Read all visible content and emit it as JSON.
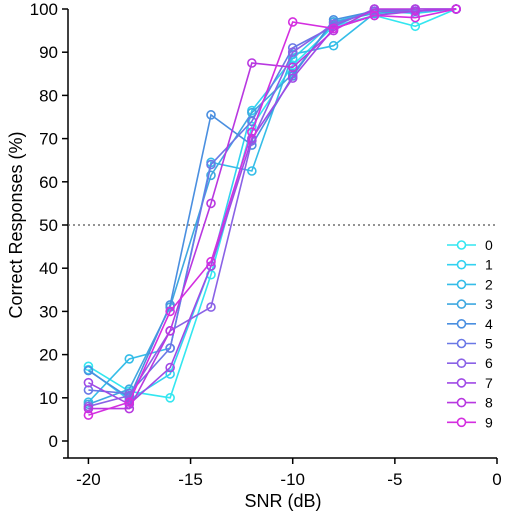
{
  "chart_data": {
    "type": "line",
    "xlabel": "SNR (dB)",
    "ylabel": "Correct Responses (%)",
    "xlim": [
      -21,
      0
    ],
    "ylim": [
      0,
      100
    ],
    "x": [
      -20,
      -18,
      -16,
      -14,
      -12,
      -10,
      -8,
      -6,
      -4,
      -2
    ],
    "x_ticks": [
      -20,
      -15,
      -10,
      -5,
      0
    ],
    "x_tick_labels": [
      "-20",
      "-15",
      "-10",
      "-5",
      "0"
    ],
    "y_ticks": [
      0,
      10,
      20,
      30,
      40,
      50,
      60,
      70,
      80,
      90,
      100
    ],
    "y_tick_labels": [
      "0",
      "10",
      "20",
      "30",
      "40",
      "50",
      "60",
      "70",
      "80",
      "90",
      "100"
    ],
    "reference_line": {
      "y": 50,
      "style": "dotted"
    },
    "grid": false,
    "legend_position": "right",
    "marker": "open-circle",
    "series": [
      {
        "name": "0",
        "color": "#33e6f0",
        "values": [
          17.3,
          11.5,
          10.0,
          38.5,
          72.8,
          87.0,
          96.0,
          98.5,
          96.0,
          100.0
        ]
      },
      {
        "name": "1",
        "color": "#33d2f0",
        "values": [
          16.5,
          9.5,
          15.5,
          40.5,
          76.5,
          88.5,
          97.0,
          99.5,
          99.0,
          100.0
        ]
      },
      {
        "name": "2",
        "color": "#35bde8",
        "values": [
          9.0,
          19.0,
          21.5,
          64.5,
          62.5,
          89.5,
          91.5,
          99.0,
          99.5,
          100.0
        ]
      },
      {
        "name": "3",
        "color": "#3fa8e0",
        "values": [
          8.5,
          12.0,
          31.0,
          61.5,
          76.0,
          85.0,
          97.0,
          99.0,
          99.5,
          100.0
        ]
      },
      {
        "name": "4",
        "color": "#4a8fe0",
        "values": [
          16.3,
          10.0,
          31.5,
          75.5,
          68.5,
          84.5,
          97.5,
          99.5,
          100.0,
          100.0
        ]
      },
      {
        "name": "5",
        "color": "#6a78e6",
        "values": [
          11.8,
          11.0,
          21.5,
          64.0,
          74.0,
          91.0,
          96.0,
          100.0,
          99.5,
          100.0
        ]
      },
      {
        "name": "6",
        "color": "#8a62e6",
        "values": [
          8.0,
          10.5,
          25.5,
          31.0,
          69.5,
          90.0,
          96.5,
          99.5,
          99.5,
          100.0
        ]
      },
      {
        "name": "7",
        "color": "#a04ae6",
        "values": [
          13.5,
          8.5,
          17.0,
          40.5,
          70.0,
          84.0,
          95.5,
          98.5,
          99.5,
          100.0
        ]
      },
      {
        "name": "8",
        "color": "#b838e0",
        "values": [
          7.5,
          7.5,
          25.5,
          55.0,
          87.5,
          86.5,
          95.0,
          100.0,
          100.0,
          100.0
        ]
      },
      {
        "name": "9",
        "color": "#d42ee0",
        "values": [
          6.0,
          9.0,
          30.0,
          41.5,
          71.5,
          97.0,
          95.5,
          98.5,
          98.0,
          100.0
        ]
      }
    ]
  }
}
